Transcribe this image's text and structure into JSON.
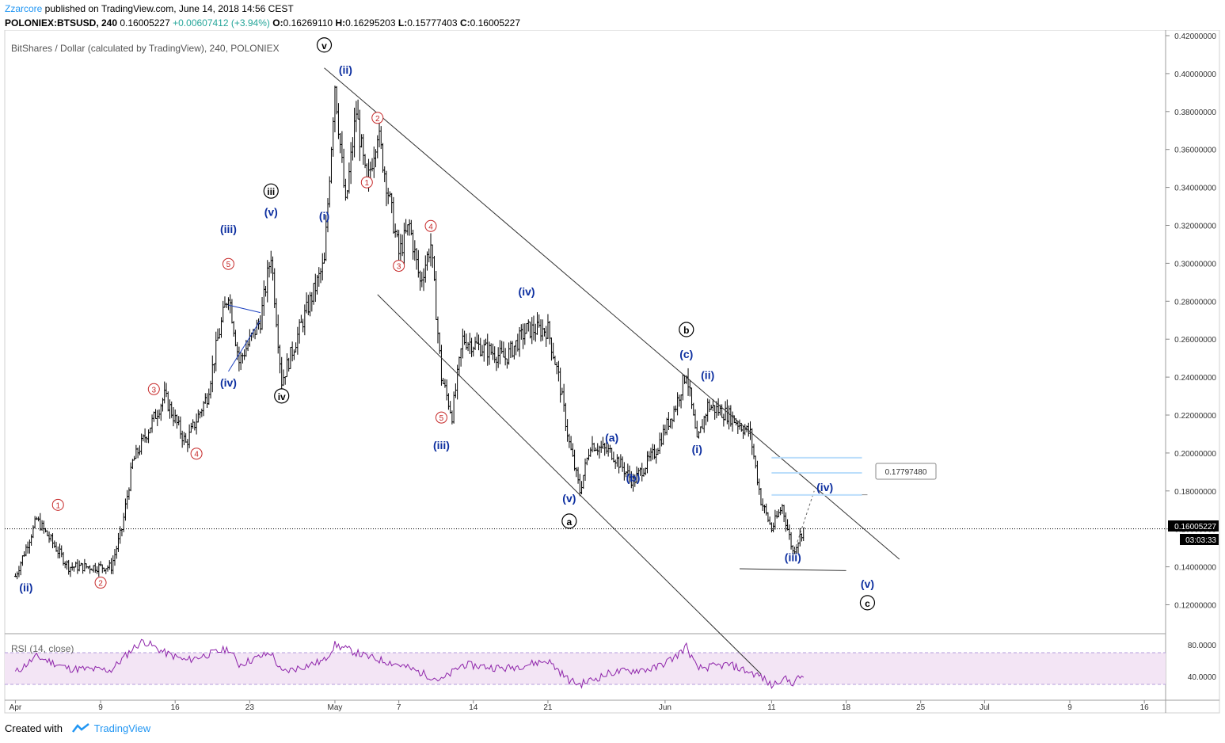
{
  "header": {
    "user": "Zzarcore",
    "published": " published on TradingView.com, June 14, 2018 14:56 CEST",
    "symbol": "POLONIEX:BTSUSD, 240",
    "price": "0.16005227",
    "change": "+0.00607412 (+3.94%)",
    "o_label": "O:",
    "o": "0.16269110",
    "h_label": "H:",
    "h": "0.16295203",
    "l_label": "L:",
    "l": "0.15777403",
    "c_label": "C:",
    "c": "0.16005227"
  },
  "footer": {
    "created": "Created with",
    "brand": "TradingView"
  },
  "chart_data": {
    "type": "candlestick",
    "title": "BitShares / Dollar (calculated by TradingView), 240, POLONIEX",
    "y_ticks": [
      "0.42000000",
      "0.40000000",
      "0.38000000",
      "0.36000000",
      "0.34000000",
      "0.32000000",
      "0.30000000",
      "0.28000000",
      "0.26000000",
      "0.24000000",
      "0.22000000",
      "0.20000000",
      "0.18000000",
      "0.16000000",
      "0.14000000",
      "0.12000000"
    ],
    "ylim": [
      0.115,
      0.42
    ],
    "x_ticks": [
      "Apr",
      "9",
      "16",
      "23",
      "May",
      "7",
      "14",
      "21",
      "Jun",
      "11",
      "18",
      "25",
      "Jul",
      "9",
      "16"
    ],
    "last_price": "0.16005227",
    "countdown": "03:03:33",
    "level_label": "0.17797480",
    "price_path": [
      [
        "2018-04-01",
        0.135
      ],
      [
        "2018-04-03",
        0.165
      ],
      [
        "2018-04-06",
        0.14
      ],
      [
        "2018-04-10",
        0.14
      ],
      [
        "2018-04-11",
        0.16
      ],
      [
        "2018-04-12",
        0.195
      ],
      [
        "2018-04-15",
        0.23
      ],
      [
        "2018-04-17",
        0.205
      ],
      [
        "2018-04-19",
        0.23
      ],
      [
        "2018-04-20",
        0.26
      ],
      [
        "2018-04-21",
        0.285
      ],
      [
        "2018-04-22",
        0.248
      ],
      [
        "2018-04-24",
        0.27
      ],
      [
        "2018-04-25",
        0.305
      ],
      [
        "2018-04-26",
        0.238
      ],
      [
        "2018-04-28",
        0.27
      ],
      [
        "2018-04-30",
        0.3
      ],
      [
        "2018-05-01",
        0.395
      ],
      [
        "2018-05-02",
        0.33
      ],
      [
        "2018-05-03",
        0.38
      ],
      [
        "2018-05-04",
        0.34
      ],
      [
        "2018-05-05",
        0.37
      ],
      [
        "2018-05-07",
        0.305
      ],
      [
        "2018-05-08",
        0.32
      ],
      [
        "2018-05-09",
        0.29
      ],
      [
        "2018-05-10",
        0.31
      ],
      [
        "2018-05-11",
        0.24
      ],
      [
        "2018-05-12",
        0.22
      ],
      [
        "2018-05-13",
        0.26
      ],
      [
        "2018-05-15",
        0.255
      ],
      [
        "2018-05-17",
        0.25
      ],
      [
        "2018-05-19",
        0.265
      ],
      [
        "2018-05-21",
        0.265
      ],
      [
        "2018-05-22",
        0.24
      ],
      [
        "2018-05-23",
        0.205
      ],
      [
        "2018-05-24",
        0.18
      ],
      [
        "2018-05-25",
        0.205
      ],
      [
        "2018-05-27",
        0.2
      ],
      [
        "2018-05-29",
        0.185
      ],
      [
        "2018-05-31",
        0.2
      ],
      [
        "2018-06-02",
        0.225
      ],
      [
        "2018-06-03",
        0.243
      ],
      [
        "2018-06-04",
        0.205
      ],
      [
        "2018-06-05",
        0.225
      ],
      [
        "2018-06-07",
        0.22
      ],
      [
        "2018-06-09",
        0.21
      ],
      [
        "2018-06-10",
        0.175
      ],
      [
        "2018-06-11",
        0.16
      ],
      [
        "2018-06-12",
        0.172
      ],
      [
        "2018-06-13",
        0.148
      ],
      [
        "2018-06-14",
        0.16
      ]
    ],
    "rsi": {
      "label": "RSI (14, close)",
      "y_ticks": [
        "80.0000",
        "40.0000"
      ],
      "upper": 70,
      "lower": 30,
      "path": [
        [
          "2018-04-01",
          45
        ],
        [
          "2018-04-03",
          65
        ],
        [
          "2018-04-06",
          50
        ],
        [
          "2018-04-10",
          48
        ],
        [
          "2018-04-12",
          75
        ],
        [
          "2018-04-13",
          85
        ],
        [
          "2018-04-15",
          70
        ],
        [
          "2018-04-17",
          60
        ],
        [
          "2018-04-21",
          75
        ],
        [
          "2018-04-22",
          55
        ],
        [
          "2018-04-25",
          70
        ],
        [
          "2018-04-26",
          45
        ],
        [
          "2018-04-30",
          60
        ],
        [
          "2018-05-01",
          80
        ],
        [
          "2018-05-04",
          65
        ],
        [
          "2018-05-07",
          55
        ],
        [
          "2018-05-09",
          45
        ],
        [
          "2018-05-11",
          35
        ],
        [
          "2018-05-13",
          55
        ],
        [
          "2018-05-17",
          50
        ],
        [
          "2018-05-21",
          60
        ],
        [
          "2018-05-23",
          35
        ],
        [
          "2018-05-24",
          30
        ],
        [
          "2018-05-27",
          45
        ],
        [
          "2018-05-31",
          50
        ],
        [
          "2018-06-02",
          65
        ],
        [
          "2018-06-03",
          78
        ],
        [
          "2018-06-04",
          50
        ],
        [
          "2018-06-07",
          55
        ],
        [
          "2018-06-10",
          40
        ],
        [
          "2018-06-11",
          28
        ],
        [
          "2018-06-12",
          38
        ],
        [
          "2018-06-13",
          32
        ],
        [
          "2018-06-14",
          42
        ]
      ]
    },
    "wave_labels": [
      {
        "text": "(ii)",
        "date": "2018-04-02",
        "price": 0.127,
        "style": "blue"
      },
      {
        "text": "1",
        "date": "2018-04-05",
        "price": 0.171,
        "style": "red"
      },
      {
        "text": "2",
        "date": "2018-04-09",
        "price": 0.13,
        "style": "red"
      },
      {
        "text": "3",
        "date": "2018-04-14",
        "price": 0.232,
        "style": "red"
      },
      {
        "text": "4",
        "date": "2018-04-18",
        "price": 0.198,
        "style": "red"
      },
      {
        "text": "5",
        "date": "2018-04-21",
        "price": 0.298,
        "style": "red"
      },
      {
        "text": "(iii)",
        "date": "2018-04-21",
        "price": 0.316,
        "style": "blue"
      },
      {
        "text": "(iv)",
        "date": "2018-04-21",
        "price": 0.235,
        "style": "blue"
      },
      {
        "text": "(v)",
        "date": "2018-04-25",
        "price": 0.325,
        "style": "blue"
      },
      {
        "text": "iii",
        "date": "2018-04-25",
        "price": 0.336,
        "style": "black"
      },
      {
        "text": "iv",
        "date": "2018-04-26",
        "price": 0.228,
        "style": "black"
      },
      {
        "text": "v",
        "date": "2018-04-30",
        "price": 0.413,
        "style": "black"
      },
      {
        "text": "(ii)",
        "date": "2018-05-02",
        "price": 0.4,
        "style": "blue"
      },
      {
        "text": "(i)",
        "date": "2018-04-30",
        "price": 0.323,
        "style": "blue"
      },
      {
        "text": "2",
        "date": "2018-05-05",
        "price": 0.375,
        "style": "red"
      },
      {
        "text": "1",
        "date": "2018-05-04",
        "price": 0.341,
        "style": "red"
      },
      {
        "text": "4",
        "date": "2018-05-10",
        "price": 0.318,
        "style": "red"
      },
      {
        "text": "3",
        "date": "2018-05-07",
        "price": 0.297,
        "style": "red"
      },
      {
        "text": "5",
        "date": "2018-05-11",
        "price": 0.217,
        "style": "red"
      },
      {
        "text": "(iii)",
        "date": "2018-05-11",
        "price": 0.202,
        "style": "blue"
      },
      {
        "text": "(iv)",
        "date": "2018-05-19",
        "price": 0.283,
        "style": "blue"
      },
      {
        "text": "(v)",
        "date": "2018-05-23",
        "price": 0.174,
        "style": "blue"
      },
      {
        "text": "a",
        "date": "2018-05-23",
        "price": 0.162,
        "style": "black"
      },
      {
        "text": "(a)",
        "date": "2018-05-27",
        "price": 0.206,
        "style": "blue"
      },
      {
        "text": "(b)",
        "date": "2018-05-29",
        "price": 0.185,
        "style": "blue"
      },
      {
        "text": "b",
        "date": "2018-06-03",
        "price": 0.263,
        "style": "black"
      },
      {
        "text": "(c)",
        "date": "2018-06-03",
        "price": 0.25,
        "style": "blue"
      },
      {
        "text": "(ii)",
        "date": "2018-06-05",
        "price": 0.239,
        "style": "blue"
      },
      {
        "text": "(i)",
        "date": "2018-06-04",
        "price": 0.2,
        "style": "blue"
      },
      {
        "text": "(iv)",
        "date": "2018-06-16",
        "price": 0.18,
        "style": "blue"
      },
      {
        "text": "(iii)",
        "date": "2018-06-13",
        "price": 0.143,
        "style": "blue"
      },
      {
        "text": "(v)",
        "date": "2018-06-20",
        "price": 0.129,
        "style": "blue"
      },
      {
        "text": "c",
        "date": "2018-06-20",
        "price": 0.119,
        "style": "black"
      }
    ],
    "colors": {
      "up": "#000000",
      "blue_label": "#0d2fa0",
      "red_label": "#c62828",
      "rsi": "#8e24aa",
      "rsi_band": "#f3e5f5",
      "level": "#bbdefb"
    }
  }
}
